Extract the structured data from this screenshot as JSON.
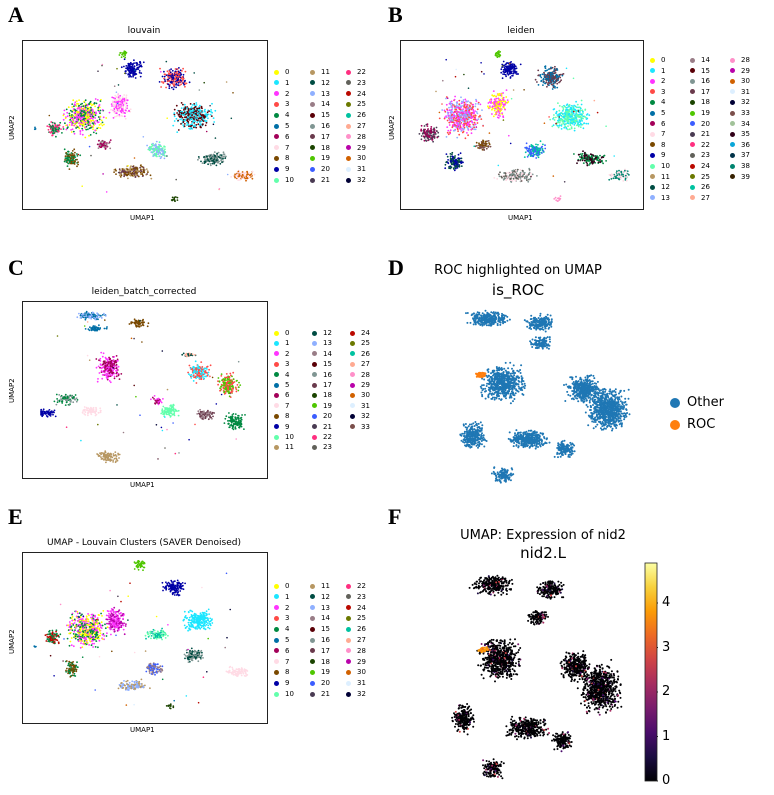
{
  "panels": {
    "A": {
      "letter": "A",
      "title": "louvain",
      "xlabel": "UMAP1",
      "ylabel": "UMAP2"
    },
    "B": {
      "letter": "B",
      "title": "leiden",
      "xlabel": "UMAP1",
      "ylabel": "UMAP2"
    },
    "C": {
      "letter": "C",
      "title": "leiden_batch_corrected",
      "xlabel": "UMAP1",
      "ylabel": "UMAP2"
    },
    "D": {
      "letter": "D",
      "title": "ROC highlighted on UMAP",
      "subtitle": "is_ROC"
    },
    "E": {
      "letter": "E",
      "title": "UMAP - Louvain Clusters (SAVER Denoised)",
      "xlabel": "UMAP1",
      "ylabel": "UMAP2"
    },
    "F": {
      "letter": "F",
      "title": "UMAP: Expression of nid2",
      "subtitle": "nid2.L"
    }
  },
  "chart_data": [
    {
      "id": "A",
      "type": "scatter",
      "title": "louvain",
      "xlabel": "UMAP1",
      "ylabel": "UMAP2",
      "legend_placement": "right",
      "categories": [
        "0",
        "1",
        "2",
        "3",
        "4",
        "5",
        "6",
        "7",
        "8",
        "9",
        "10",
        "11",
        "12",
        "13",
        "14",
        "15",
        "16",
        "17",
        "18",
        "19",
        "20",
        "21",
        "22",
        "23",
        "24",
        "25",
        "26",
        "27",
        "28",
        "29",
        "30",
        "31",
        "32"
      ]
    },
    {
      "id": "B",
      "type": "scatter",
      "title": "leiden",
      "xlabel": "UMAP1",
      "ylabel": "UMAP2",
      "legend_placement": "right",
      "categories": [
        "0",
        "1",
        "2",
        "3",
        "4",
        "5",
        "6",
        "7",
        "8",
        "9",
        "10",
        "11",
        "12",
        "13",
        "14",
        "15",
        "16",
        "17",
        "18",
        "19",
        "20",
        "21",
        "22",
        "23",
        "24",
        "25",
        "26",
        "27",
        "28",
        "29",
        "30",
        "31",
        "32",
        "33",
        "34",
        "35",
        "36",
        "37",
        "38",
        "39"
      ]
    },
    {
      "id": "C",
      "type": "scatter",
      "title": "leiden_batch_corrected",
      "xlabel": "UMAP1",
      "ylabel": "UMAP2",
      "legend_placement": "right",
      "categories": [
        "0",
        "1",
        "2",
        "3",
        "4",
        "5",
        "6",
        "7",
        "8",
        "9",
        "10",
        "11",
        "12",
        "13",
        "14",
        "15",
        "16",
        "17",
        "18",
        "19",
        "20",
        "21",
        "22",
        "23",
        "24",
        "25",
        "26",
        "27",
        "28",
        "29",
        "30",
        "31",
        "32",
        "33"
      ]
    },
    {
      "id": "D",
      "type": "scatter",
      "title": "ROC highlighted on UMAP",
      "subtitle": "is_ROC",
      "legend_placement": "right",
      "categories": [
        "Other",
        "ROC"
      ],
      "category_colors": [
        "#1f77b4",
        "#ff7f0e"
      ]
    },
    {
      "id": "E",
      "type": "scatter",
      "title": "UMAP - Louvain Clusters (SAVER Denoised)",
      "xlabel": "UMAP1",
      "ylabel": "UMAP2",
      "legend_placement": "right",
      "categories": [
        "0",
        "1",
        "2",
        "3",
        "4",
        "5",
        "6",
        "7",
        "8",
        "9",
        "10",
        "11",
        "12",
        "13",
        "14",
        "15",
        "16",
        "17",
        "18",
        "19",
        "20",
        "21",
        "22",
        "23",
        "24",
        "25",
        "26",
        "27",
        "28",
        "29",
        "30",
        "31",
        "32"
      ]
    },
    {
      "id": "F",
      "type": "scatter",
      "title": "UMAP: Expression of nid2",
      "subtitle": "nid2.L",
      "colorbar": {
        "range": [
          0,
          4.9
        ],
        "ticks": [
          0,
          1,
          2,
          3,
          4
        ],
        "colormap": "inferno"
      }
    }
  ],
  "palette": [
    "#ffff00",
    "#1ce6ff",
    "#ff34ff",
    "#ff4a46",
    "#008941",
    "#006fa6",
    "#a30059",
    "#ffdbe5",
    "#7a4900",
    "#0000a6",
    "#63ffac",
    "#b79762",
    "#004d43",
    "#8fb0ff",
    "#997d87",
    "#5a0007",
    "#809693",
    "#6a3a4c",
    "#1b4400",
    "#4fc601",
    "#3b5dff",
    "#4a3b53",
    "#ff2f80",
    "#61615a",
    "#ba0900",
    "#6b7900",
    "#00c2a0",
    "#ffaa92",
    "#ff90c9",
    "#b903aa",
    "#d16100",
    "#ddefff",
    "#000035",
    "#7b4f4b",
    "#a1c299",
    "#300018",
    "#0aa6d8",
    "#013349",
    "#00846f",
    "#372101"
  ]
}
